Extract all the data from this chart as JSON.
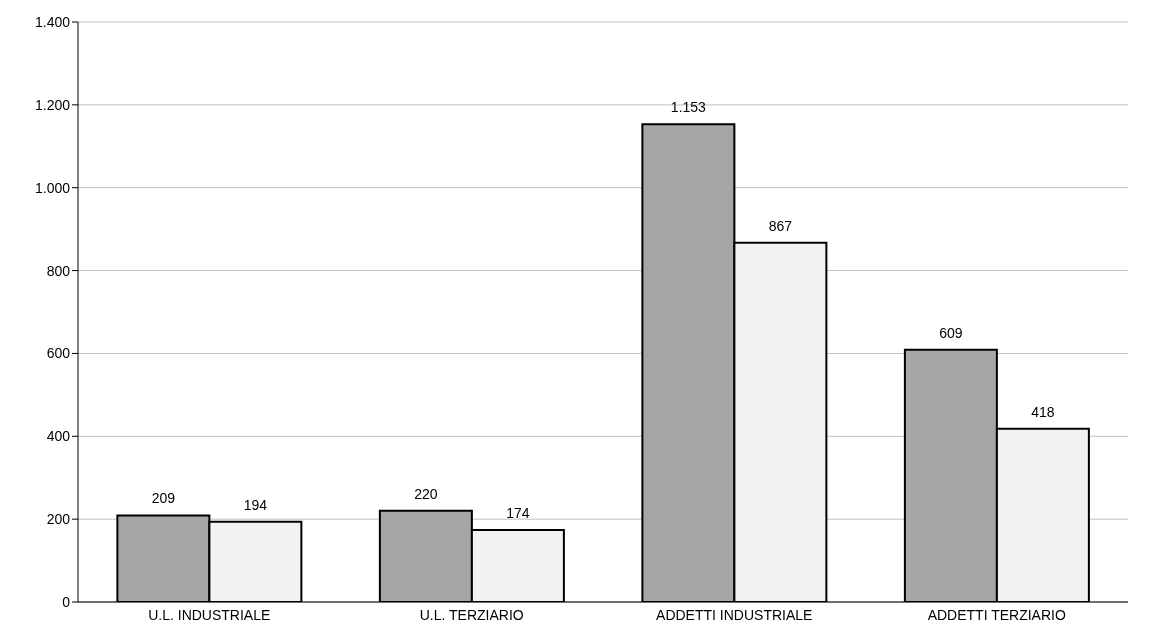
{
  "chart_data": {
    "type": "bar",
    "categories": [
      "U.L. INDUSTRIALE",
      "U.L. TERZIARIO",
      "ADDETTI INDUSTRIALE",
      "ADDETTI TERZIARIO"
    ],
    "series": [
      {
        "color": "#a6a6a6",
        "values": [
          209,
          220,
          1153,
          609
        ],
        "value_labels": [
          "209",
          "220",
          "1.153",
          "609"
        ]
      },
      {
        "color": "#f2f2f2",
        "values": [
          194,
          174,
          867,
          418
        ],
        "value_labels": [
          "194",
          "174",
          "867",
          "418"
        ]
      }
    ],
    "ylim": [
      0,
      1400
    ],
    "yticks": [
      0,
      200,
      400,
      600,
      800,
      {
        "value": 1000,
        "label": "1.000"
      },
      {
        "value": 1200,
        "label": "1.200"
      },
      {
        "value": 1400,
        "label": "1.400"
      }
    ],
    "grid": "y",
    "legend": false
  }
}
